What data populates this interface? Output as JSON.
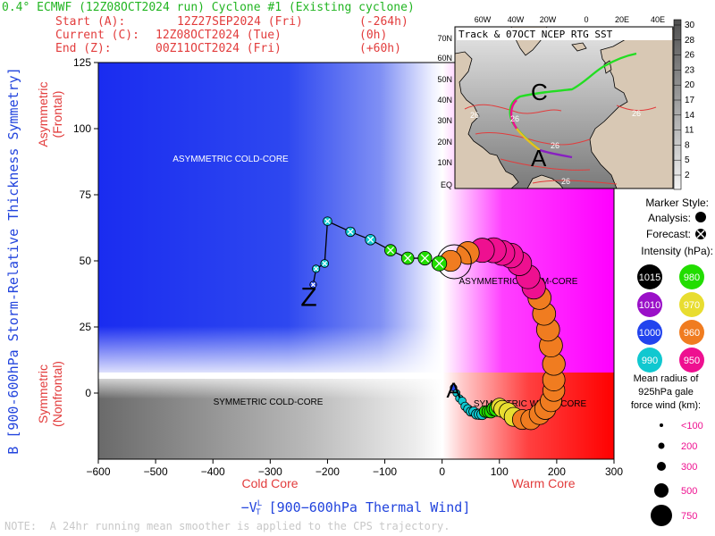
{
  "header": {
    "title": "0.4° ECMWF (12Z08OCT2024 run) Cyclone #1 (Existing cyclone)",
    "start_label": "Start (A):",
    "start_time": "12Z27SEP2024 (Fri)",
    "start_offset": "(-264h)",
    "current_label": "Current (C):",
    "current_time": "12Z08OCT2024 (Tue)",
    "current_offset": "(0h)",
    "end_label": "End (Z):",
    "end_time": "00Z11OCT2024 (Fri)",
    "end_offset": "(+60h)"
  },
  "note": "NOTE:  A 24hr running mean smoother is applied to the CPS trajectory.",
  "colors": {
    "green": "#22b522",
    "red": "#e23c3c",
    "blue": "#2244dd",
    "magenta": "#ff00ff",
    "warm_red": "#ff0000"
  },
  "chart_data": {
    "type": "scatter",
    "xlabel": "-V_T^L [900-600hPa Thermal Wind]",
    "xlabel_main": "−V",
    "xlabel_sup": "L",
    "xlabel_sub": "T",
    "xlabel_rest": " [900−600hPa Thermal Wind]",
    "ylabel": "B [900-600hPa Storm-Relative Thickness Symmetry]",
    "xlim": [
      -600,
      300
    ],
    "ylim": [
      -25,
      125
    ],
    "xticks": [
      -600,
      -500,
      -400,
      -300,
      -200,
      -100,
      0,
      100,
      200,
      300
    ],
    "yticks": [
      0,
      25,
      50,
      75,
      100,
      125
    ],
    "region_labels": {
      "asym_cold": "ASYMMETRIC COLD-CORE",
      "asym_warm": "ASYMMETRIC WARM-CORE",
      "sym_cold": "SYMMETRIC COLD-CORE",
      "sym_warm": "SYMMETRIC WARM-CORE"
    },
    "side_labels": {
      "asymmetric": "Asymmetric",
      "frontal": "(Frontal)",
      "symmetric": "Symmetric",
      "nonfrontal": "(Nonfrontal)",
      "cold_core": "Cold Core",
      "warm_core": "Warm Core"
    },
    "track_labels": {
      "start": "A",
      "current": "C",
      "end": "Z"
    },
    "analysis": [
      [
        20,
        2,
        995
      ],
      [
        25,
        0,
        994
      ],
      [
        30,
        -2,
        993
      ],
      [
        35,
        -3,
        992
      ],
      [
        40,
        -5,
        991
      ],
      [
        45,
        -6,
        990
      ],
      [
        50,
        -7,
        989
      ],
      [
        55,
        -7,
        988
      ],
      [
        60,
        -8,
        987
      ],
      [
        65,
        -8,
        986
      ],
      [
        70,
        -8,
        985
      ],
      [
        75,
        -7,
        983
      ],
      [
        80,
        -7,
        982
      ],
      [
        85,
        -7,
        980
      ],
      [
        90,
        -6,
        978
      ],
      [
        95,
        -6,
        975
      ],
      [
        100,
        -5,
        972
      ],
      [
        105,
        -6,
        970
      ],
      [
        115,
        -7,
        968
      ],
      [
        125,
        -9,
        965
      ],
      [
        140,
        -10,
        963
      ],
      [
        155,
        -10,
        962
      ],
      [
        170,
        -8,
        961
      ],
      [
        180,
        -6,
        960
      ],
      [
        190,
        -3,
        959
      ],
      [
        195,
        1,
        958
      ],
      [
        195,
        5,
        957
      ],
      [
        195,
        11,
        956
      ],
      [
        190,
        18,
        955
      ],
      [
        185,
        24,
        955
      ],
      [
        178,
        30,
        955
      ],
      [
        170,
        36,
        955
      ],
      [
        160,
        40,
        954
      ],
      [
        150,
        44,
        953
      ],
      [
        135,
        49,
        952
      ],
      [
        120,
        52,
        951
      ],
      [
        105,
        53,
        950
      ],
      [
        90,
        54,
        950
      ],
      [
        70,
        54,
        952
      ],
      [
        45,
        53,
        956
      ],
      [
        15,
        50,
        960
      ]
    ],
    "forecast": [
      [
        -5,
        49,
        975
      ],
      [
        -30,
        51,
        978
      ],
      [
        -60,
        51,
        981
      ],
      [
        -90,
        54,
        983
      ],
      [
        -125,
        58,
        986
      ],
      [
        -160,
        61,
        988
      ],
      [
        -200,
        65,
        990
      ],
      [
        -205,
        49,
        992
      ],
      [
        -220,
        47,
        993
      ],
      [
        -225,
        41,
        995
      ]
    ],
    "map": {
      "title": "Track & 07OCT NCEP RTG SST",
      "lon_labels": [
        "60W",
        "40W",
        "20W",
        "0",
        "20E",
        "40E"
      ],
      "lat_labels": [
        "70N",
        "60N",
        "50N",
        "40N",
        "30N",
        "20N",
        "10N",
        "EQ"
      ],
      "contour_labels": [
        "26",
        "26",
        "26",
        "26",
        "26"
      ],
      "colorbar_labels": [
        "30",
        "28",
        "26",
        "23",
        "20",
        "17",
        "14",
        "11",
        "8",
        "5",
        "2"
      ]
    },
    "legend": {
      "marker_style": "Marker Style:",
      "analysis": "Analysis:",
      "forecast": "Forecast:",
      "intensity_title": "Intensity (hPa):",
      "intensities": [
        {
          "label": "1015",
          "color": "#000000"
        },
        {
          "label": "980",
          "color": "#22dd00"
        },
        {
          "label": "1010",
          "color": "#9a10c8"
        },
        {
          "label": "970",
          "color": "#e8dd30"
        },
        {
          "label": "1000",
          "color": "#2244ee"
        },
        {
          "label": "960",
          "color": "#f07c20"
        },
        {
          "label": "990",
          "color": "#10c8d0"
        },
        {
          "label": "950",
          "color": "#ee1090"
        }
      ],
      "radius_title_1": "Mean radius of",
      "radius_title_2": "925hPa gale",
      "radius_title_3": "force wind (km):",
      "radii": [
        "<100",
        "200",
        "300",
        "500",
        "750"
      ]
    }
  }
}
